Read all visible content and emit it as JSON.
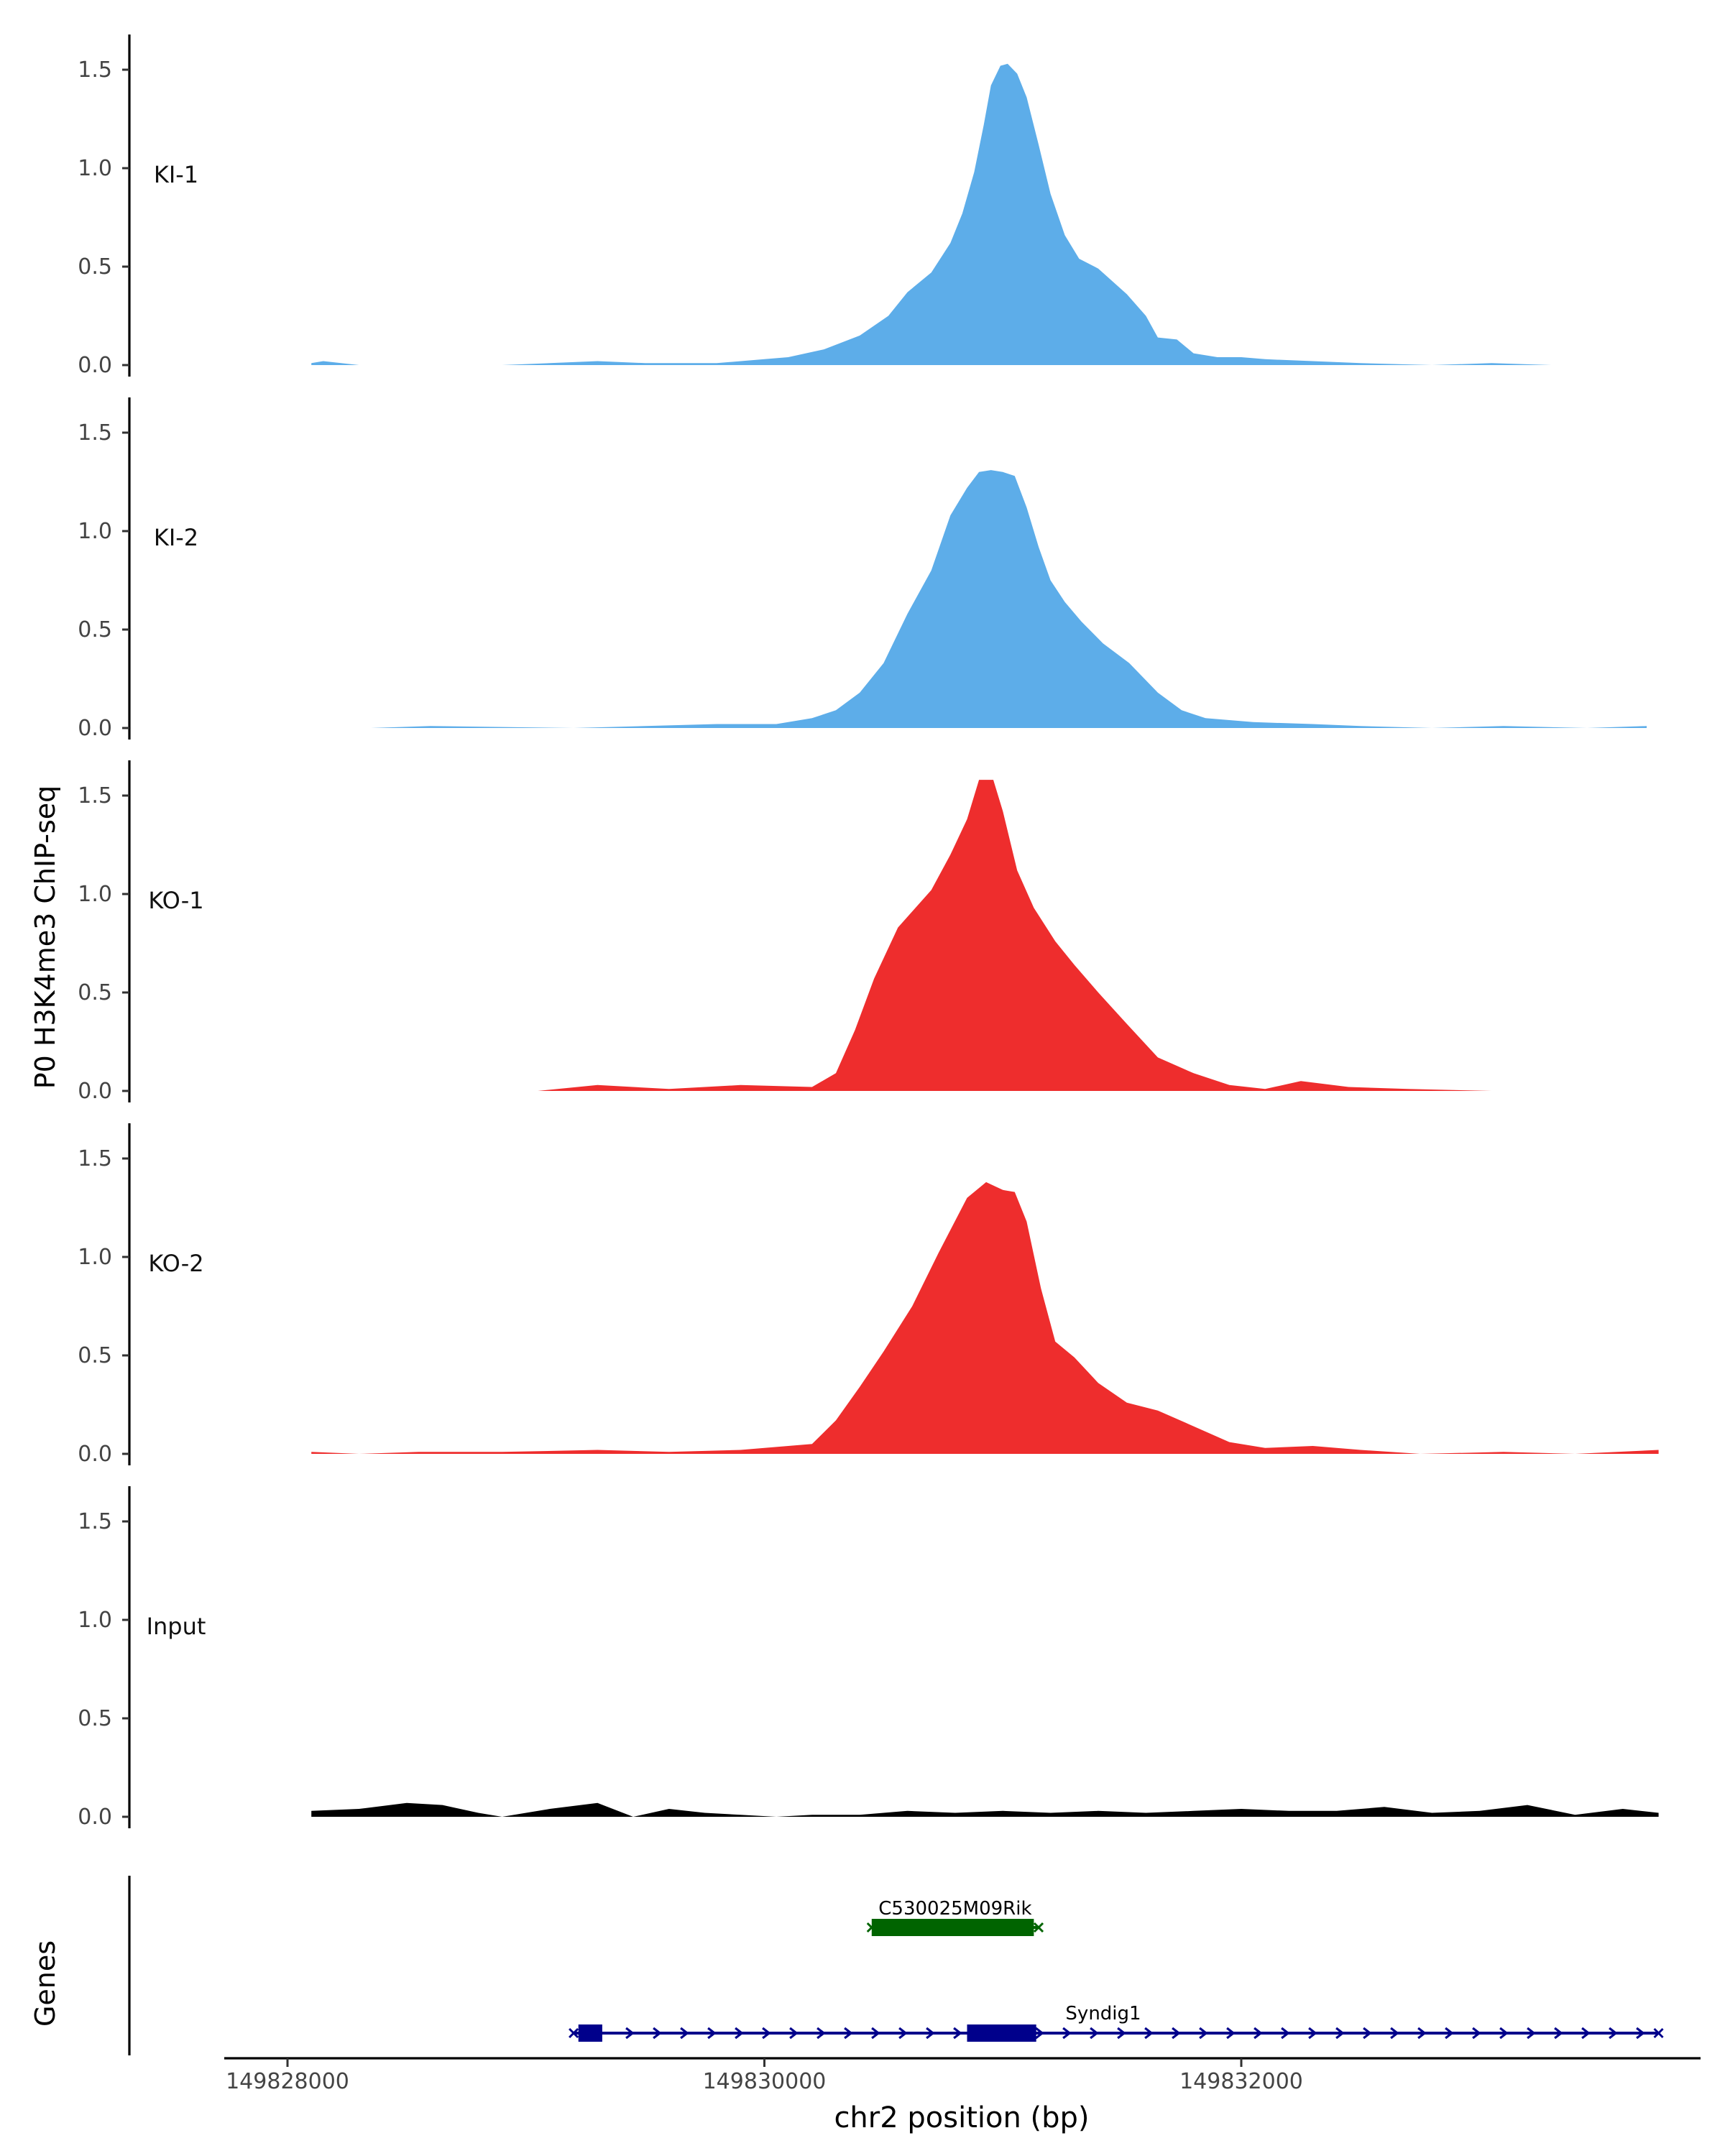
{
  "chart_data": {
    "type": "area",
    "ylabel": "P0 H3K4me3 ChIP-seq",
    "xlabel": "chr2 position (bp)",
    "genes_label": "Genes",
    "xlim": [
      149827700,
      149833950
    ],
    "ylim": [
      0,
      1.65
    ],
    "y_ticks": [
      0.0,
      0.5,
      1.0,
      1.5
    ],
    "y_tick_labels": [
      "0.0",
      "0.5",
      "1.0",
      "1.5"
    ],
    "x_ticks": [
      149828000,
      149830000,
      149832000
    ],
    "x_tick_labels": [
      "149828000",
      "149830000",
      "149832000"
    ],
    "colors": {
      "KI": "#5dade9",
      "KO": "#ee2d2d",
      "Input": "#000000",
      "gene_green": "#006400",
      "gene_blue": "#00008b"
    },
    "tracks": [
      {
        "name": "KI-1",
        "color": "#5dade9",
        "x": [
          149828100,
          149828150,
          149828300,
          149828900,
          149829300,
          149829500,
          149829800,
          149830000,
          149830100,
          149830250,
          149830400,
          149830520,
          149830600,
          149830700,
          149830780,
          149830830,
          149830880,
          149830920,
          149830950,
          149830990,
          149831020,
          149831060,
          149831100,
          149831150,
          149831200,
          149831260,
          149831320,
          149831400,
          149831520,
          149831600,
          149831650,
          149831730,
          149831800,
          149831900,
          149832000,
          149832100,
          149832300,
          149832500,
          149832800,
          149833050,
          149833300
        ],
        "y": [
          0.01,
          0.02,
          0.0,
          0.0,
          0.02,
          0.01,
          0.01,
          0.03,
          0.04,
          0.08,
          0.15,
          0.25,
          0.37,
          0.47,
          0.62,
          0.77,
          0.98,
          1.22,
          1.42,
          1.52,
          1.53,
          1.48,
          1.36,
          1.12,
          0.87,
          0.66,
          0.54,
          0.49,
          0.36,
          0.25,
          0.14,
          0.13,
          0.06,
          0.04,
          0.04,
          0.03,
          0.02,
          0.01,
          0.0,
          0.01,
          0.0
        ]
      },
      {
        "name": "KI-2",
        "color": "#5dade9",
        "x": [
          149828350,
          149828600,
          149829200,
          149829500,
          149829800,
          149830050,
          149830200,
          149830300,
          149830400,
          149830500,
          149830600,
          149830700,
          149830780,
          149830850,
          149830900,
          149830950,
          149831000,
          149831050,
          149831100,
          149831150,
          149831200,
          149831260,
          149831330,
          149831420,
          149831530,
          149831650,
          149831750,
          149831850,
          149831950,
          149832050,
          149832300,
          149832500,
          149832800,
          149833100,
          149833450,
          149833700
        ],
        "y": [
          0.0,
          0.01,
          0.0,
          0.01,
          0.02,
          0.02,
          0.05,
          0.09,
          0.18,
          0.33,
          0.58,
          0.8,
          1.08,
          1.22,
          1.3,
          1.31,
          1.3,
          1.28,
          1.12,
          0.92,
          0.75,
          0.64,
          0.54,
          0.43,
          0.33,
          0.18,
          0.09,
          0.05,
          0.04,
          0.03,
          0.02,
          0.01,
          0.0,
          0.01,
          0.0,
          0.01
        ]
      },
      {
        "name": "KO-1",
        "color": "#ee2d2d",
        "x": [
          149829050,
          149829300,
          149829600,
          149829900,
          149830200,
          149830300,
          149830380,
          149830460,
          149830560,
          149830700,
          149830780,
          149830850,
          149830900,
          149830960,
          149831000,
          149831060,
          149831130,
          149831220,
          149831300,
          149831400,
          149831520,
          149831650,
          149831800,
          149831950,
          149832100,
          149832250,
          149832450,
          149832700,
          149833050
        ],
        "y": [
          0.0,
          0.03,
          0.01,
          0.03,
          0.02,
          0.09,
          0.31,
          0.57,
          0.83,
          1.02,
          1.2,
          1.38,
          1.58,
          1.58,
          1.42,
          1.12,
          0.93,
          0.76,
          0.64,
          0.5,
          0.34,
          0.17,
          0.09,
          0.03,
          0.01,
          0.05,
          0.02,
          0.01,
          0.0
        ]
      },
      {
        "name": "KO-2",
        "color": "#ee2d2d",
        "x": [
          149828100,
          149828300,
          149828550,
          149828900,
          149829300,
          149829600,
          149829900,
          149830200,
          149830300,
          149830400,
          149830500,
          149830620,
          149830730,
          149830850,
          149830930,
          149831000,
          149831050,
          149831100,
          149831160,
          149831220,
          149831300,
          149831400,
          149831520,
          149831650,
          149831800,
          149831950,
          149832100,
          149832300,
          149832500,
          149832750,
          149833100,
          149833400,
          149833750
        ],
        "y": [
          0.01,
          0.0,
          0.01,
          0.01,
          0.02,
          0.01,
          0.02,
          0.05,
          0.17,
          0.34,
          0.52,
          0.75,
          1.02,
          1.3,
          1.38,
          1.34,
          1.33,
          1.18,
          0.84,
          0.57,
          0.49,
          0.36,
          0.26,
          0.22,
          0.14,
          0.06,
          0.03,
          0.04,
          0.02,
          0.0,
          0.01,
          0.0,
          0.02
        ]
      },
      {
        "name": "Input",
        "color": "#000000",
        "x": [
          149828100,
          149828300,
          149828500,
          149828650,
          149828800,
          149828900,
          149829100,
          149829300,
          149829450,
          149829600,
          149829750,
          149829900,
          149830050,
          149830200,
          149830400,
          149830600,
          149830800,
          149831000,
          149831200,
          149831400,
          149831600,
          149831800,
          149832000,
          149832200,
          149832400,
          149832600,
          149832800,
          149833000,
          149833200,
          149833400,
          149833600,
          149833750
        ],
        "y": [
          0.03,
          0.04,
          0.07,
          0.06,
          0.02,
          0.0,
          0.04,
          0.07,
          0.0,
          0.04,
          0.02,
          0.01,
          0.0,
          0.01,
          0.01,
          0.03,
          0.02,
          0.03,
          0.02,
          0.03,
          0.02,
          0.03,
          0.04,
          0.03,
          0.03,
          0.05,
          0.02,
          0.03,
          0.06,
          0.01,
          0.04,
          0.02
        ]
      }
    ],
    "genes": [
      {
        "name": "C530025M09Rik",
        "strand": "-",
        "color": "#006400",
        "start": 149830450,
        "end": 149831150,
        "exons": [
          [
            149830450,
            149831130
          ]
        ]
      },
      {
        "name": "Syndig1",
        "strand": "+",
        "color": "#00008b",
        "start": 149829200,
        "end": 149833750,
        "exons": [
          [
            149829220,
            149829320
          ],
          [
            149830850,
            149831140
          ]
        ]
      }
    ]
  }
}
